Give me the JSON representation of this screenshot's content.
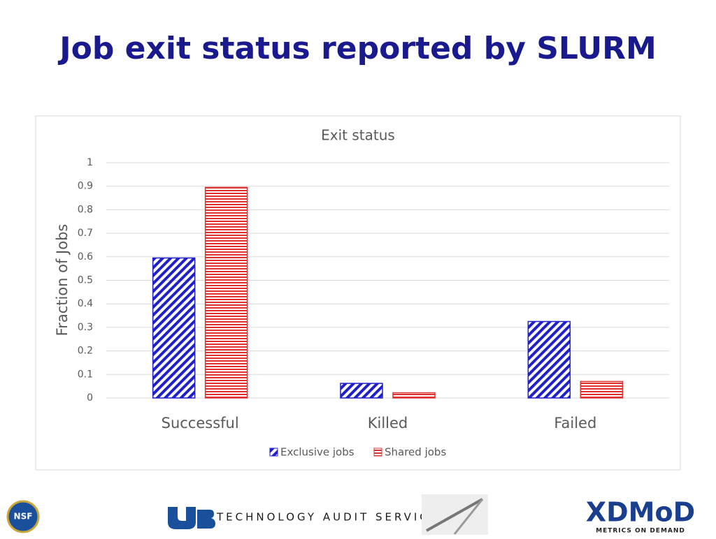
{
  "slide_title": "Job exit status reported by SLURM",
  "chart_data": {
    "type": "bar",
    "title": "Exit status",
    "y_label": "Fraction of Jobs",
    "categories": [
      "Successful",
      "Killed",
      "Failed"
    ],
    "series": [
      {
        "name": "Exclusive jobs",
        "color": "#1f1fcc",
        "pattern": "diagonal",
        "values": [
          0.595,
          0.062,
          0.325
        ]
      },
      {
        "name": "Shared jobs",
        "color": "#e03030",
        "pattern": "horizontal",
        "values": [
          0.895,
          0.022,
          0.07
        ]
      }
    ],
    "ylim": [
      0,
      1
    ],
    "yticks": [
      0,
      0.1,
      0.2,
      0.3,
      0.4,
      0.5,
      0.6,
      0.7,
      0.8,
      0.9,
      1
    ],
    "grid": true,
    "legend": "bottom"
  },
  "footer": {
    "nsf": "NSF",
    "service": "TECHNOLOGY AUDIT SERVICE",
    "xdmod": "XDMoD",
    "xdmod_tagline": "METRICS ON DEMAND"
  }
}
